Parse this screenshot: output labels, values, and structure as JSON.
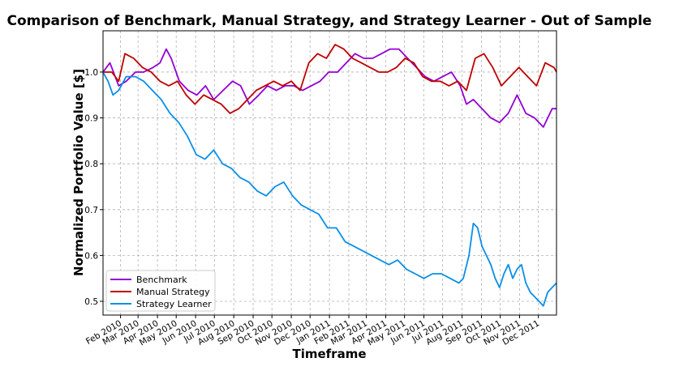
{
  "chart_data": {
    "type": "line",
    "title": "Comparison of Benchmark, Manual Strategy, and Strategy Learner - Out of Sample",
    "xlabel": "Timeframe",
    "ylabel": "Normalized Portfolio Value [$]",
    "xlim": [
      "2010-01-04",
      "2011-12-30"
    ],
    "ylim": [
      0.47,
      1.09
    ],
    "yticks": [
      0.5,
      0.6,
      0.7,
      0.8,
      0.9,
      1.0
    ],
    "xticks": [
      {
        "date": "2010-02-01",
        "label": "Feb 2010"
      },
      {
        "date": "2010-03-01",
        "label": "Mar 2010"
      },
      {
        "date": "2010-04-01",
        "label": "Apr 2010"
      },
      {
        "date": "2010-05-01",
        "label": "May 2010"
      },
      {
        "date": "2010-06-01",
        "label": "Jun 2010"
      },
      {
        "date": "2010-07-01",
        "label": "Jul 2010"
      },
      {
        "date": "2010-08-01",
        "label": "Aug 2010"
      },
      {
        "date": "2010-09-01",
        "label": "Sep 2010"
      },
      {
        "date": "2010-10-01",
        "label": "Oct 2010"
      },
      {
        "date": "2010-11-01",
        "label": "Nov 2010"
      },
      {
        "date": "2010-12-01",
        "label": "Dec 2010"
      },
      {
        "date": "2011-01-01",
        "label": "Jan 2011"
      },
      {
        "date": "2011-02-01",
        "label": "Feb 2011"
      },
      {
        "date": "2011-03-01",
        "label": "Mar 2011"
      },
      {
        "date": "2011-04-01",
        "label": "Apr 2011"
      },
      {
        "date": "2011-05-01",
        "label": "May 2011"
      },
      {
        "date": "2011-06-01",
        "label": "Jun 2011"
      },
      {
        "date": "2011-07-01",
        "label": "Jul 2011"
      },
      {
        "date": "2011-08-01",
        "label": "Aug 2011"
      },
      {
        "date": "2011-09-01",
        "label": "Sep 2011"
      },
      {
        "date": "2011-10-01",
        "label": "Oct 2011"
      },
      {
        "date": "2011-11-01",
        "label": "Nov 2011"
      },
      {
        "date": "2011-12-01",
        "label": "Dec 2011"
      }
    ],
    "grid": true,
    "legend_position": "lower-left",
    "series": [
      {
        "name": "Benchmark",
        "color": "#9400d3",
        "x": [
          "2010-01-04",
          "2010-01-15",
          "2010-01-29",
          "2010-02-10",
          "2010-02-25",
          "2010-03-10",
          "2010-03-25",
          "2010-04-05",
          "2010-04-15",
          "2010-04-23",
          "2010-05-06",
          "2010-05-20",
          "2010-06-03",
          "2010-06-17",
          "2010-06-30",
          "2010-07-15",
          "2010-07-30",
          "2010-08-12",
          "2010-08-26",
          "2010-09-10",
          "2010-09-24",
          "2010-10-08",
          "2010-10-22",
          "2010-11-05",
          "2010-11-19",
          "2010-12-03",
          "2010-12-17",
          "2010-12-31",
          "2011-01-14",
          "2011-01-28",
          "2011-02-11",
          "2011-02-25",
          "2011-03-11",
          "2011-03-25",
          "2011-04-08",
          "2011-04-22",
          "2011-05-06",
          "2011-05-20",
          "2011-06-03",
          "2011-06-17",
          "2011-07-01",
          "2011-07-15",
          "2011-07-29",
          "2011-08-08",
          "2011-08-19",
          "2011-09-02",
          "2011-09-16",
          "2011-09-30",
          "2011-10-14",
          "2011-10-28",
          "2011-11-11",
          "2011-11-25",
          "2011-12-09",
          "2011-12-23",
          "2011-12-30"
        ],
        "values": [
          1.0,
          1.02,
          0.97,
          0.98,
          1.0,
          1.0,
          1.01,
          1.02,
          1.05,
          1.03,
          0.98,
          0.96,
          0.95,
          0.97,
          0.94,
          0.96,
          0.98,
          0.97,
          0.93,
          0.95,
          0.97,
          0.96,
          0.97,
          0.97,
          0.96,
          0.97,
          0.98,
          1.0,
          1.0,
          1.02,
          1.04,
          1.03,
          1.03,
          1.04,
          1.05,
          1.05,
          1.03,
          1.01,
          0.99,
          0.98,
          0.99,
          1.0,
          0.97,
          0.93,
          0.94,
          0.92,
          0.9,
          0.89,
          0.91,
          0.95,
          0.91,
          0.9,
          0.88,
          0.92,
          0.92
        ]
      },
      {
        "name": "Manual Strategy",
        "color": "#c00000",
        "x": [
          "2010-01-04",
          "2010-01-18",
          "2010-01-29",
          "2010-02-08",
          "2010-02-22",
          "2010-03-08",
          "2010-03-22",
          "2010-04-05",
          "2010-04-19",
          "2010-05-03",
          "2010-05-17",
          "2010-05-31",
          "2010-06-14",
          "2010-06-28",
          "2010-07-12",
          "2010-07-26",
          "2010-08-09",
          "2010-08-23",
          "2010-09-06",
          "2010-09-20",
          "2010-10-04",
          "2010-10-18",
          "2010-11-01",
          "2010-11-15",
          "2010-11-29",
          "2010-12-13",
          "2010-12-27",
          "2011-01-10",
          "2011-01-24",
          "2011-02-07",
          "2011-02-21",
          "2011-03-07",
          "2011-03-21",
          "2011-04-04",
          "2011-04-18",
          "2011-05-02",
          "2011-05-16",
          "2011-05-30",
          "2011-06-13",
          "2011-06-27",
          "2011-07-11",
          "2011-07-25",
          "2011-08-08",
          "2011-08-22",
          "2011-09-05",
          "2011-09-19",
          "2011-10-03",
          "2011-10-17",
          "2011-10-31",
          "2011-11-14",
          "2011-11-28",
          "2011-12-12",
          "2011-12-26",
          "2011-12-30"
        ],
        "values": [
          1.0,
          1.0,
          0.98,
          1.04,
          1.03,
          1.01,
          1.0,
          0.98,
          0.97,
          0.98,
          0.95,
          0.93,
          0.95,
          0.94,
          0.93,
          0.91,
          0.92,
          0.94,
          0.96,
          0.97,
          0.98,
          0.97,
          0.98,
          0.96,
          1.02,
          1.04,
          1.03,
          1.06,
          1.05,
          1.03,
          1.02,
          1.01,
          1.0,
          1.0,
          1.01,
          1.03,
          1.02,
          0.99,
          0.98,
          0.98,
          0.97,
          0.98,
          0.96,
          1.03,
          1.04,
          1.01,
          0.97,
          0.99,
          1.01,
          0.99,
          0.97,
          1.02,
          1.01,
          1.0
        ]
      },
      {
        "name": "Strategy Learner",
        "color": "#0a8fe8",
        "x": [
          "2010-01-04",
          "2010-01-12",
          "2010-01-20",
          "2010-01-29",
          "2010-02-10",
          "2010-02-25",
          "2010-03-10",
          "2010-03-24",
          "2010-04-07",
          "2010-04-21",
          "2010-05-05",
          "2010-05-19",
          "2010-06-02",
          "2010-06-16",
          "2010-06-30",
          "2010-07-14",
          "2010-07-28",
          "2010-08-11",
          "2010-08-25",
          "2010-09-08",
          "2010-09-22",
          "2010-10-06",
          "2010-10-20",
          "2010-11-03",
          "2010-11-17",
          "2010-12-01",
          "2010-12-15",
          "2010-12-29",
          "2011-01-12",
          "2011-01-26",
          "2011-02-09",
          "2011-02-23",
          "2011-03-09",
          "2011-03-23",
          "2011-04-06",
          "2011-04-20",
          "2011-05-04",
          "2011-05-18",
          "2011-06-01",
          "2011-06-15",
          "2011-06-29",
          "2011-07-13",
          "2011-07-27",
          "2011-08-03",
          "2011-08-12",
          "2011-08-19",
          "2011-08-26",
          "2011-09-02",
          "2011-09-09",
          "2011-09-16",
          "2011-09-23",
          "2011-09-30",
          "2011-10-07",
          "2011-10-14",
          "2011-10-21",
          "2011-10-28",
          "2011-11-04",
          "2011-11-11",
          "2011-11-18",
          "2011-11-25",
          "2011-12-02",
          "2011-12-09",
          "2011-12-16",
          "2011-12-23",
          "2011-12-30"
        ],
        "values": [
          1.0,
          0.98,
          0.95,
          0.96,
          0.99,
          0.99,
          0.98,
          0.96,
          0.94,
          0.91,
          0.89,
          0.86,
          0.82,
          0.81,
          0.83,
          0.8,
          0.79,
          0.77,
          0.76,
          0.74,
          0.73,
          0.75,
          0.76,
          0.73,
          0.71,
          0.7,
          0.69,
          0.66,
          0.66,
          0.63,
          0.62,
          0.61,
          0.6,
          0.59,
          0.58,
          0.59,
          0.57,
          0.56,
          0.55,
          0.56,
          0.56,
          0.55,
          0.54,
          0.55,
          0.6,
          0.67,
          0.66,
          0.62,
          0.6,
          0.58,
          0.55,
          0.53,
          0.56,
          0.58,
          0.55,
          0.57,
          0.58,
          0.54,
          0.52,
          0.51,
          0.5,
          0.49,
          0.52,
          0.53,
          0.54
        ]
      }
    ]
  }
}
